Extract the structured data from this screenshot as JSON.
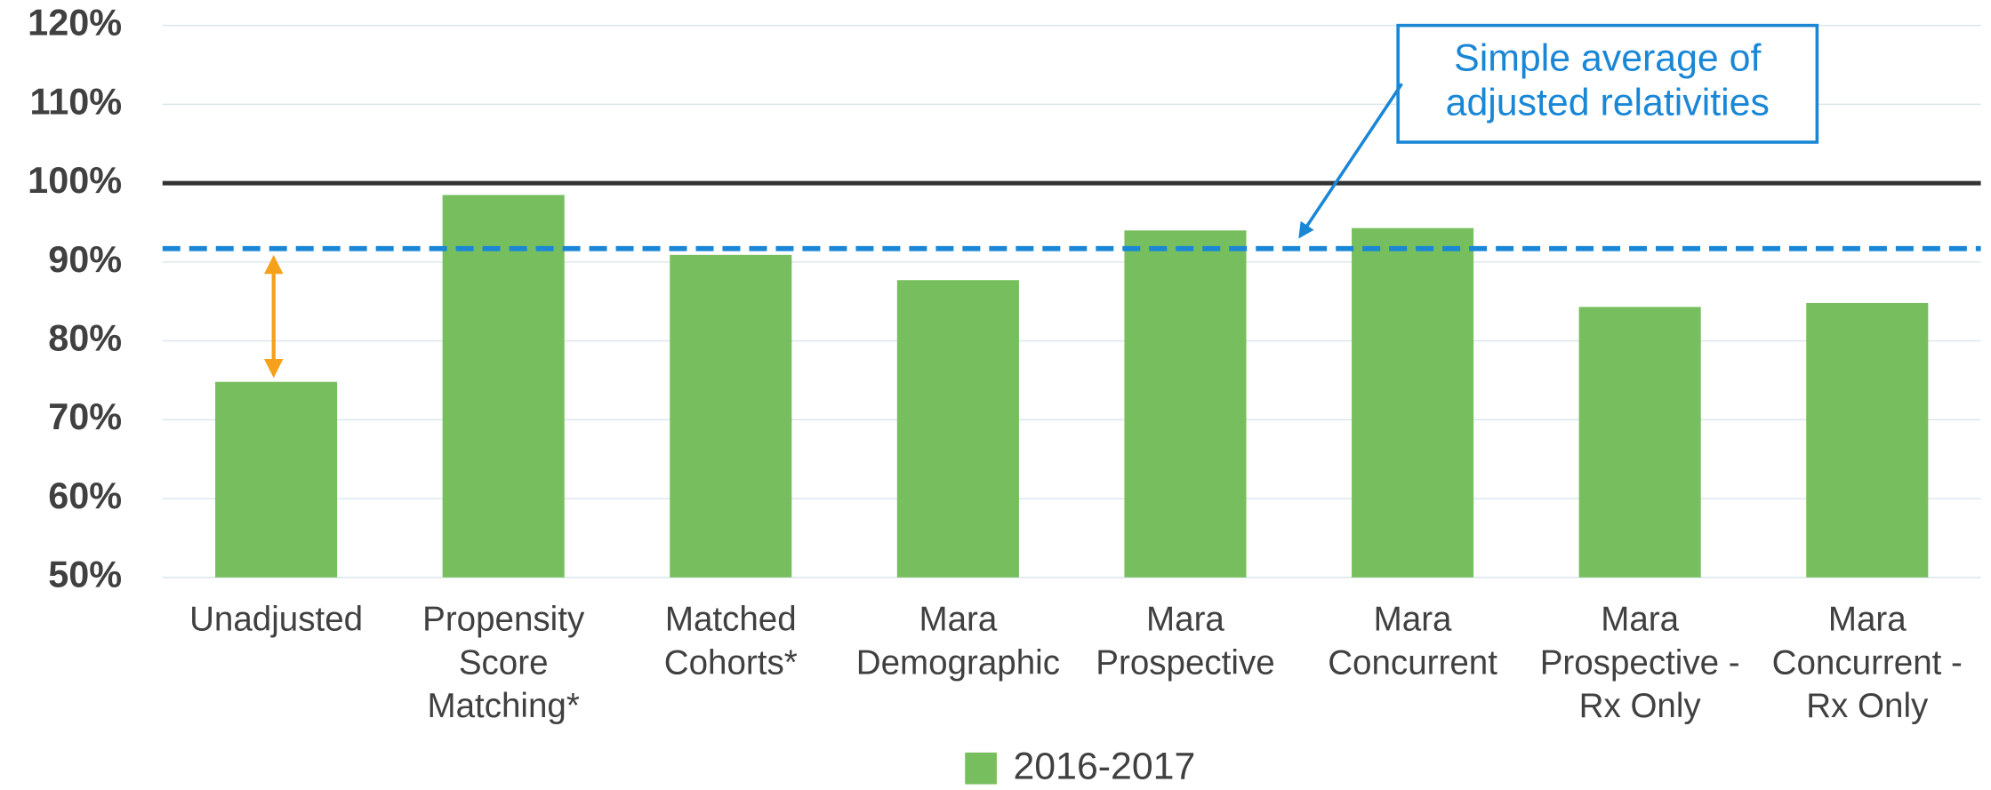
{
  "chart_data": {
    "type": "bar",
    "categories": [
      "Unadjusted",
      "Propensity Score Matching*",
      "Matched Cohorts*",
      "Mara Demographic",
      "Mara Prospective",
      "Mara Concurrent",
      "Mara Prospective - Rx Only",
      "Mara Concurrent - Rx Only"
    ],
    "series": [
      {
        "name": "2016-2017",
        "color": "#77bf5e",
        "values": [
          74.8,
          98.5,
          90.9,
          87.7,
          94.0,
          94.3,
          84.3,
          84.8
        ]
      }
    ],
    "ylim": [
      50,
      120
    ],
    "yticks": [
      {
        "value": 50,
        "label": "50%"
      },
      {
        "value": 60,
        "label": "60%"
      },
      {
        "value": 70,
        "label": "70%"
      },
      {
        "value": 80,
        "label": "80%"
      },
      {
        "value": 90,
        "label": "90%"
      },
      {
        "value": 100,
        "label": "100%"
      },
      {
        "value": 110,
        "label": "110%"
      },
      {
        "value": 120,
        "label": "120%"
      }
    ],
    "grid": true,
    "legend": "bottom",
    "reference_lines": [
      {
        "value": 100,
        "color": "#333333",
        "style": "solid"
      },
      {
        "value": 91.7,
        "color": "#1a87d6",
        "style": "dashed"
      }
    ],
    "annotation": {
      "text": "Simple average of adjusted relativities",
      "color": "#1a87d6"
    }
  }
}
